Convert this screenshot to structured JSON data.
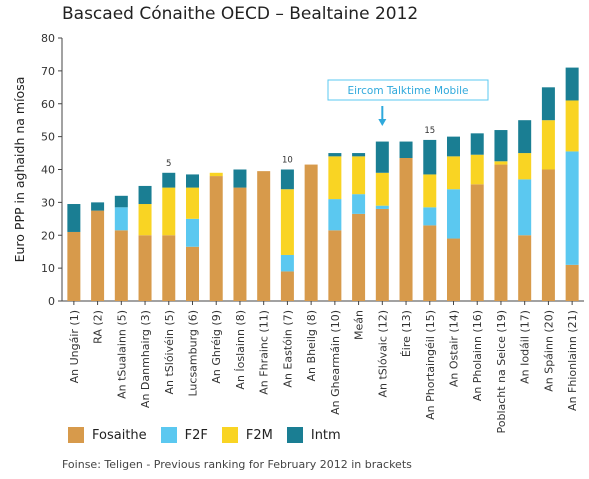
{
  "title": "Bascaed Cónaithe OECD – Bealtaine 2012",
  "source": "Foinse: Teligen - Previous ranking for February 2012 in brackets",
  "callout": {
    "label": "Eircom Talktime Mobile",
    "category_index": 13
  },
  "chart_data": {
    "type": "bar",
    "stacked": true,
    "title": "Bascaed Cónaithe OECD – Bealtaine 2012",
    "ylabel": "Euro PPP in aghaidh na míosa",
    "xlabel": "",
    "ylim": [
      0,
      80
    ],
    "yticks": [
      0,
      10,
      20,
      30,
      40,
      50,
      60,
      70,
      80
    ],
    "grid": false,
    "legend_position": "bottom",
    "categories": [
      "An Ungáir (1)",
      "RA (2)",
      "An tSualainn (5)",
      "An Danmhairg (3)",
      "An tSlóivéin (5)",
      "Lucsamburg (6)",
      "An Ghréig (9)",
      "An Íoslainn (8)",
      "An Fhrainc (11)",
      "An Eastóin (7)",
      "An Bheilg (8)",
      "An Ghearmáin (10)",
      "Meán",
      "An tSlóvaic (12)",
      "Éire (13)",
      "An Phortaingéil (15)",
      "An Ostair (14)",
      "An Pholainn (16)",
      "Poblacht na Seice (19)",
      "An Iodáil (17)",
      "An Spáinn (20)",
      "An Fhionlainn (21)"
    ],
    "rank_labels": [
      {
        "category_index": 4,
        "text": "5"
      },
      {
        "category_index": 9,
        "text": "10"
      },
      {
        "category_index": 15,
        "text": "15"
      }
    ],
    "series": [
      {
        "name": "Fosaithe",
        "color": "#D79A4B",
        "values": [
          21,
          27.5,
          21.5,
          20,
          20,
          16.5,
          38,
          34.5,
          39.5,
          9,
          41.5,
          21.5,
          26.5,
          28,
          43.5,
          23,
          19,
          35.5,
          41.5,
          20,
          40,
          11
        ]
      },
      {
        "name": "F2F",
        "color": "#5BC8F0",
        "values": [
          0,
          0,
          7,
          0,
          0,
          8.5,
          0,
          0,
          0,
          5,
          0,
          9.5,
          6,
          1,
          0,
          5.5,
          15,
          0,
          0,
          17,
          0,
          34.5
        ]
      },
      {
        "name": "F2M",
        "color": "#F9D423",
        "values": [
          0,
          0,
          0,
          9.5,
          14.5,
          9.5,
          1,
          0,
          0,
          20,
          0,
          13,
          11.5,
          10,
          0,
          10,
          10,
          9,
          1,
          8,
          15,
          15.5
        ]
      },
      {
        "name": "Intm",
        "color": "#1A7E93",
        "values": [
          8.5,
          2.5,
          3.5,
          5.5,
          4.5,
          4,
          0,
          5.5,
          0,
          6,
          0,
          1,
          1,
          9.5,
          5,
          10.5,
          6,
          6.5,
          9.5,
          10,
          10,
          10
        ]
      }
    ]
  }
}
